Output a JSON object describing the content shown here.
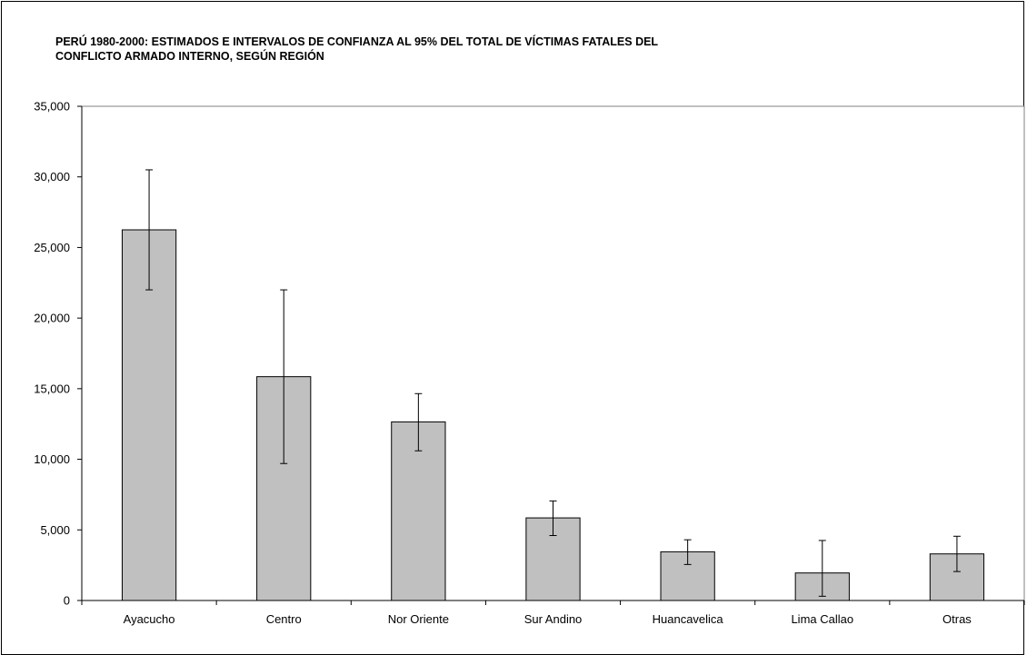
{
  "chart_data": {
    "type": "bar",
    "title_lines": [
      "PERÚ 1980-2000: ESTIMADOS E INTERVALOS DE CONFIANZA AL 95% DEL TOTAL DE VÍCTIMAS FATALES DEL",
      "CONFLICTO ARMADO INTERNO, SEGÚN REGIÓN"
    ],
    "categories": [
      "Ayacucho",
      "Centro",
      "Nor Oriente",
      "Sur Andino",
      "Huancavelica",
      "Lima Callao",
      "Otras"
    ],
    "values": [
      26250,
      15850,
      12650,
      5850,
      3450,
      1950,
      3300
    ],
    "error_low": [
      22000,
      9700,
      10600,
      4600,
      2550,
      300,
      2050
    ],
    "error_high": [
      30500,
      22000,
      14650,
      7050,
      4300,
      4250,
      4550
    ],
    "ylim": [
      0,
      35000
    ],
    "y_ticks": [
      0,
      5000,
      10000,
      15000,
      20000,
      25000,
      30000,
      35000
    ],
    "y_tick_labels": [
      "0",
      "5,000",
      "10,000",
      "15,000",
      "20,000",
      "25,000",
      "30,000",
      "35,000"
    ],
    "xlabel": "",
    "ylabel": "",
    "grid": false,
    "legend": "none",
    "bar_color": "#c0c0c0",
    "edge_color": "#000000"
  }
}
